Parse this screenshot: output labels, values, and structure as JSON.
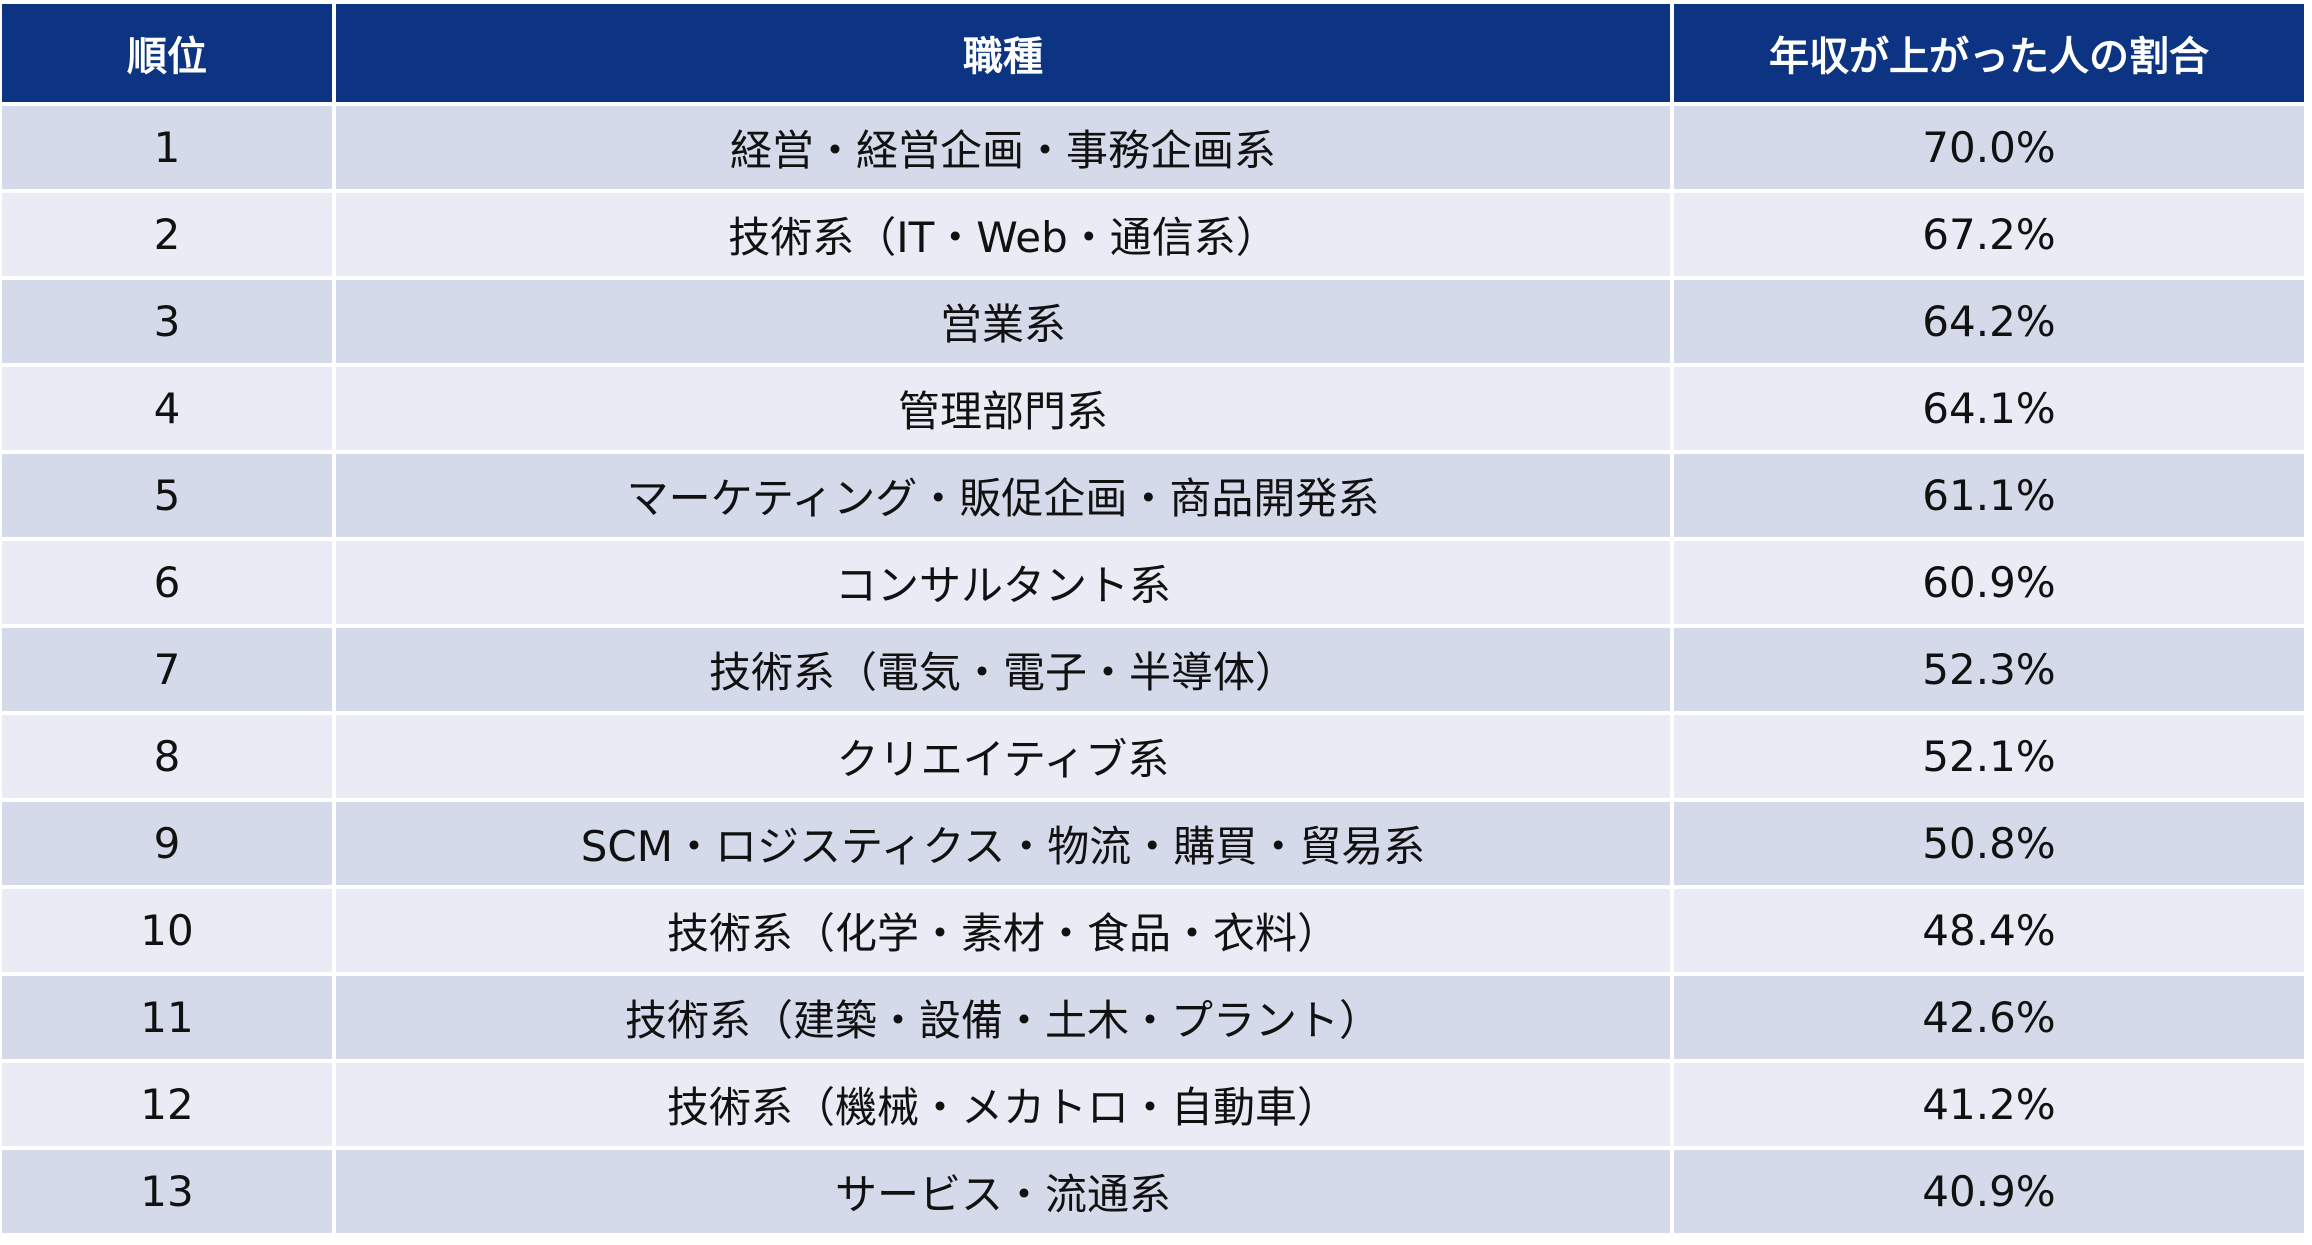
{
  "headers": {
    "rank": "順位",
    "job": "職種",
    "ratio": "年収が上がった人の割合"
  },
  "colors": {
    "header": "#0d3483",
    "row_odd": "#d4daea",
    "row_even": "#e9ecf4"
  },
  "rows": [
    {
      "rank": "1",
      "job": "経営・経営企画・事務企画系",
      "ratio": "70.0%"
    },
    {
      "rank": "2",
      "job": "技術系（IT・Web・通信系）",
      "ratio": "67.2%"
    },
    {
      "rank": "3",
      "job": "営業系",
      "ratio": "64.2%"
    },
    {
      "rank": "4",
      "job": "管理部門系",
      "ratio": "64.1%"
    },
    {
      "rank": "5",
      "job": "マーケティング・販促企画・商品開発系",
      "ratio": "61.1%"
    },
    {
      "rank": "6",
      "job": "コンサルタント系",
      "ratio": "60.9%"
    },
    {
      "rank": "7",
      "job": "技術系（電気・電子・半導体）",
      "ratio": "52.3%"
    },
    {
      "rank": "8",
      "job": "クリエイティブ系",
      "ratio": "52.1%"
    },
    {
      "rank": "9",
      "job": "SCM・ロジスティクス・物流・購買・貿易系",
      "ratio": "50.8%"
    },
    {
      "rank": "10",
      "job": "技術系（化学・素材・食品・衣料）",
      "ratio": "48.4%"
    },
    {
      "rank": "11",
      "job": "技術系（建築・設備・土木・プラント）",
      "ratio": "42.6%"
    },
    {
      "rank": "12",
      "job": "技術系（機械・メカトロ・自動車）",
      "ratio": "41.2%"
    },
    {
      "rank": "13",
      "job": "サービス・流通系",
      "ratio": "40.9%"
    }
  ]
}
